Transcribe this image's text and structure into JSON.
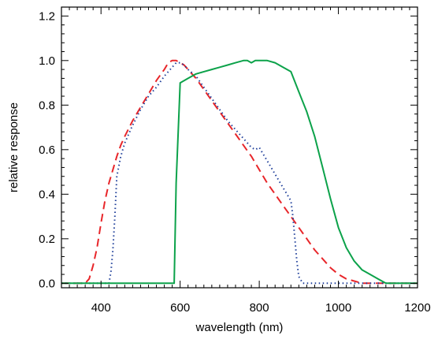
{
  "chart_data": {
    "type": "line",
    "title": "",
    "xlabel": "wavelength (nm)",
    "ylabel": "relative response",
    "xlim": [
      300,
      1200
    ],
    "ylim": [
      -0.02,
      1.24
    ],
    "xticks": [
      400,
      600,
      800,
      1000,
      1200
    ],
    "xtick_labels": [
      "400",
      "600",
      "800",
      "1000",
      "1200"
    ],
    "yticks": [
      0.0,
      0.2,
      0.4,
      0.6,
      0.8,
      1.0,
      1.2
    ],
    "ytick_labels": [
      "0.0",
      "0.2",
      "0.4",
      "0.6",
      "0.8",
      "1.0",
      "1.2"
    ],
    "grid": false,
    "legend": "none",
    "series": [
      {
        "color": "#e8262a",
        "style": "dashed",
        "x": [
          300,
          360,
          370,
          380,
          390,
          400,
          410,
          420,
          430,
          440,
          450,
          460,
          480,
          500,
          520,
          540,
          560,
          570,
          580,
          590,
          600,
          610,
          620,
          640,
          660,
          680,
          700,
          720,
          740,
          760,
          780,
          800,
          820,
          840,
          860,
          880,
          900,
          920,
          940,
          960,
          980,
          1000,
          1020,
          1040,
          1060,
          1080,
          1100,
          1200
        ],
        "y": [
          0.0,
          0.0,
          0.02,
          0.08,
          0.16,
          0.27,
          0.37,
          0.45,
          0.51,
          0.57,
          0.62,
          0.66,
          0.73,
          0.79,
          0.85,
          0.91,
          0.96,
          0.99,
          1.0,
          1.0,
          0.99,
          0.98,
          0.96,
          0.92,
          0.87,
          0.82,
          0.77,
          0.72,
          0.67,
          0.62,
          0.57,
          0.51,
          0.45,
          0.4,
          0.35,
          0.3,
          0.25,
          0.2,
          0.15,
          0.11,
          0.07,
          0.04,
          0.02,
          0.01,
          0.0,
          0.0,
          0.0,
          0.0
        ]
      },
      {
        "color": "#1f3f9a",
        "style": "dotted",
        "x": [
          300,
          420,
          425,
          430,
          435,
          440,
          450,
          460,
          480,
          500,
          520,
          540,
          560,
          580,
          590,
          600,
          610,
          620,
          640,
          660,
          680,
          700,
          720,
          740,
          760,
          780,
          790,
          800,
          810,
          820,
          840,
          860,
          870,
          880,
          885,
          890,
          895,
          900,
          910,
          1200
        ],
        "y": [
          0.0,
          0.0,
          0.05,
          0.15,
          0.3,
          0.48,
          0.57,
          0.63,
          0.71,
          0.78,
          0.84,
          0.88,
          0.93,
          0.97,
          0.99,
          0.99,
          0.98,
          0.96,
          0.93,
          0.88,
          0.83,
          0.78,
          0.73,
          0.69,
          0.65,
          0.61,
          0.6,
          0.61,
          0.58,
          0.55,
          0.49,
          0.43,
          0.4,
          0.37,
          0.3,
          0.2,
          0.1,
          0.03,
          0.0,
          0.0
        ]
      },
      {
        "color": "#0ca24a",
        "style": "solid",
        "x": [
          300,
          585,
          590,
          600,
          620,
          640,
          660,
          680,
          700,
          720,
          740,
          760,
          770,
          780,
          790,
          800,
          820,
          840,
          860,
          880,
          900,
          920,
          940,
          960,
          980,
          1000,
          1020,
          1040,
          1060,
          1080,
          1100,
          1110,
          1120,
          1130,
          1200
        ],
        "y": [
          0.0,
          0.0,
          0.45,
          0.9,
          0.92,
          0.94,
          0.95,
          0.96,
          0.97,
          0.98,
          0.99,
          1.0,
          1.0,
          0.99,
          1.0,
          1.0,
          1.0,
          0.99,
          0.97,
          0.95,
          0.86,
          0.77,
          0.66,
          0.52,
          0.38,
          0.25,
          0.16,
          0.1,
          0.06,
          0.04,
          0.02,
          0.01,
          0.0,
          0.0,
          0.0
        ]
      }
    ]
  }
}
